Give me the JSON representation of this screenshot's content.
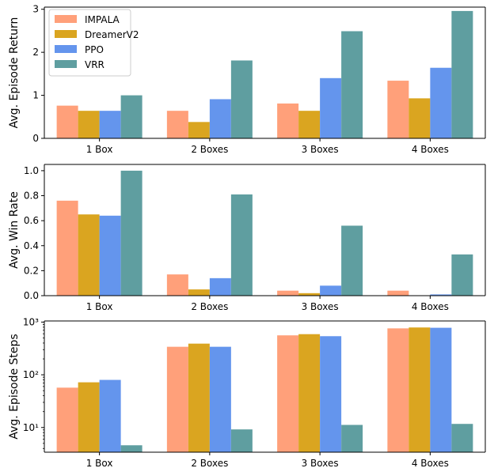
{
  "series_colors": {
    "IMPALA": "#FFA07A",
    "DreamerV2": "#DAA520",
    "PPO": "#6495ED",
    "VRR": "#5F9EA0"
  },
  "chart_data": [
    {
      "type": "bar",
      "ylabel": "Avg. Episode Return",
      "yscale": "linear",
      "ylim": [
        0,
        3.05
      ],
      "yticks": [
        0,
        1,
        2,
        3
      ],
      "ytick_labels": [
        "0",
        "1",
        "2",
        "3"
      ],
      "categories": [
        "1 Box",
        "2 Boxes",
        "3 Boxes",
        "4 Boxes"
      ],
      "legend": {
        "position": "top-left",
        "entries": [
          "IMPALA",
          "DreamerV2",
          "PPO",
          "VRR"
        ]
      },
      "series": [
        {
          "name": "IMPALA",
          "values": [
            0.76,
            0.64,
            0.81,
            1.34
          ]
        },
        {
          "name": "DreamerV2",
          "values": [
            0.64,
            0.38,
            0.64,
            0.93
          ]
        },
        {
          "name": "PPO",
          "values": [
            0.64,
            0.91,
            1.4,
            1.64
          ]
        },
        {
          "name": "VRR",
          "values": [
            1.0,
            1.81,
            2.49,
            2.96
          ]
        }
      ]
    },
    {
      "type": "bar",
      "ylabel": "Avg. Win Rate",
      "yscale": "linear",
      "ylim": [
        0,
        1.05
      ],
      "yticks": [
        0,
        0.2,
        0.4,
        0.6,
        0.8,
        1.0
      ],
      "ytick_labels": [
        "0.0",
        "0.2",
        "0.4",
        "0.6",
        "0.8",
        "1.0"
      ],
      "categories": [
        "1 Box",
        "2 Boxes",
        "3 Boxes",
        "4 Boxes"
      ],
      "series": [
        {
          "name": "IMPALA",
          "values": [
            0.76,
            0.17,
            0.04,
            0.04
          ]
        },
        {
          "name": "DreamerV2",
          "values": [
            0.65,
            0.05,
            0.02,
            0.0
          ]
        },
        {
          "name": "PPO",
          "values": [
            0.64,
            0.14,
            0.08,
            0.01
          ]
        },
        {
          "name": "VRR",
          "values": [
            1.0,
            0.81,
            0.56,
            0.33
          ]
        }
      ]
    },
    {
      "type": "bar",
      "ylabel": "Avg. Episode Steps",
      "yscale": "log",
      "ylim": [
        3.4,
        1050
      ],
      "yticks": [
        10,
        100,
        1000
      ],
      "ytick_labels": [
        "10¹",
        "10²",
        "10³"
      ],
      "categories": [
        "1 Box",
        "2 Boxes",
        "3 Boxes",
        "4 Boxes"
      ],
      "series": [
        {
          "name": "IMPALA",
          "values": [
            57,
            340,
            560,
            760
          ]
        },
        {
          "name": "DreamerV2",
          "values": [
            72,
            390,
            590,
            790
          ]
        },
        {
          "name": "PPO",
          "values": [
            80,
            340,
            540,
            780
          ]
        },
        {
          "name": "VRR",
          "values": [
            4.6,
            9.2,
            11.2,
            11.7
          ]
        }
      ]
    }
  ]
}
